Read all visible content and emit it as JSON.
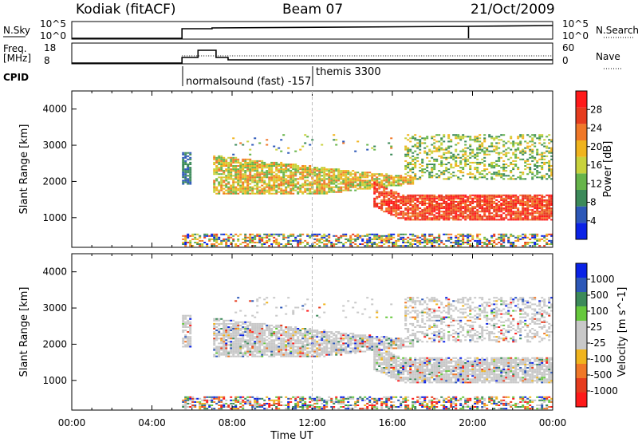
{
  "header": {
    "station": "Kodiak (fitACF)",
    "beam": "Beam 07",
    "date": "21/Oct/2009"
  },
  "strip_labels": {
    "nsky": "N.Sky",
    "nsky_ticks": [
      "10^5",
      "10^0"
    ],
    "nsearch": "N.Search",
    "nsearch_ticks": [
      "10^5",
      "10^0"
    ],
    "freq": "Freq.",
    "freq_unit": "[MHz]",
    "freq_ticks": [
      "18",
      "8"
    ],
    "nave": "Nave",
    "nave_ticks": [
      "60",
      "0"
    ],
    "cpid": "CPID",
    "cpid_entries": [
      "normalsound (fast) -157",
      "themis 3300"
    ]
  },
  "colors": {
    "power": [
      "#0a22e6",
      "#2d58b8",
      "#3c8a5a",
      "#66b44a",
      "#c8d23c",
      "#f0b41e",
      "#f07828",
      "#e63c1e",
      "#ff1a1a"
    ],
    "velocity": [
      "#0a22e6",
      "#2d58b8",
      "#3c8a5a",
      "#66c83c",
      "#c8c8c8",
      "#c8c8c8",
      "#f0b41e",
      "#f07828",
      "#e63c1e",
      "#ff1a1a"
    ]
  },
  "chart_data": [
    {
      "type": "heatmap",
      "panel": "power",
      "ylabel": "Slant Range [km]",
      "ylim": [
        180,
        4500
      ],
      "xlim": [
        "00:00",
        "24:00"
      ],
      "colorbar_label": "Power [dB]",
      "colorbar_ticks": [
        "28",
        "24",
        "20",
        "16",
        "12",
        "8",
        "4"
      ],
      "colorbar_range": [
        0,
        30
      ],
      "yticks": [
        "4000",
        "3000",
        "2000",
        "1000"
      ],
      "data_start_ut": "05:30",
      "bands": [
        {
          "x": [
            "05:30",
            "06:00"
          ],
          "range_km": [
            1900,
            2800
          ],
          "level": "low"
        },
        {
          "x": [
            "07:00",
            "17:00"
          ],
          "range_km": [
            1600,
            2700
          ],
          "level": "mid-high"
        },
        {
          "x": [
            "15:00",
            "24:00"
          ],
          "range_km": [
            900,
            1600
          ],
          "level": "high"
        },
        {
          "x": [
            "16:30",
            "24:00"
          ],
          "range_km": [
            2000,
            3300
          ],
          "level": "low-mid"
        },
        {
          "x": [
            "05:30",
            "24:00"
          ],
          "range_km": [
            180,
            550
          ],
          "level": "mixed"
        }
      ]
    },
    {
      "type": "heatmap",
      "panel": "velocity",
      "ylabel": "Slant Range [km]",
      "ylim": [
        180,
        4500
      ],
      "xlim": [
        "00:00",
        "24:00"
      ],
      "xlabel": "Time UT",
      "xticks": [
        "00:00",
        "04:00",
        "08:00",
        "12:00",
        "16:00",
        "20:00",
        "00:00"
      ],
      "colorbar_label": "Velocity [m s^-1]",
      "colorbar_ticks": [
        "1000",
        "500",
        "100",
        "25",
        "-25",
        "-100",
        "-500",
        "-1000"
      ],
      "yticks": [
        "4000",
        "3000",
        "2000",
        "1000"
      ],
      "data_start_ut": "05:30"
    },
    {
      "type": "line",
      "panel": "nsky",
      "x_start": "05:30",
      "level_before": 0,
      "level_after": "high"
    }
  ]
}
